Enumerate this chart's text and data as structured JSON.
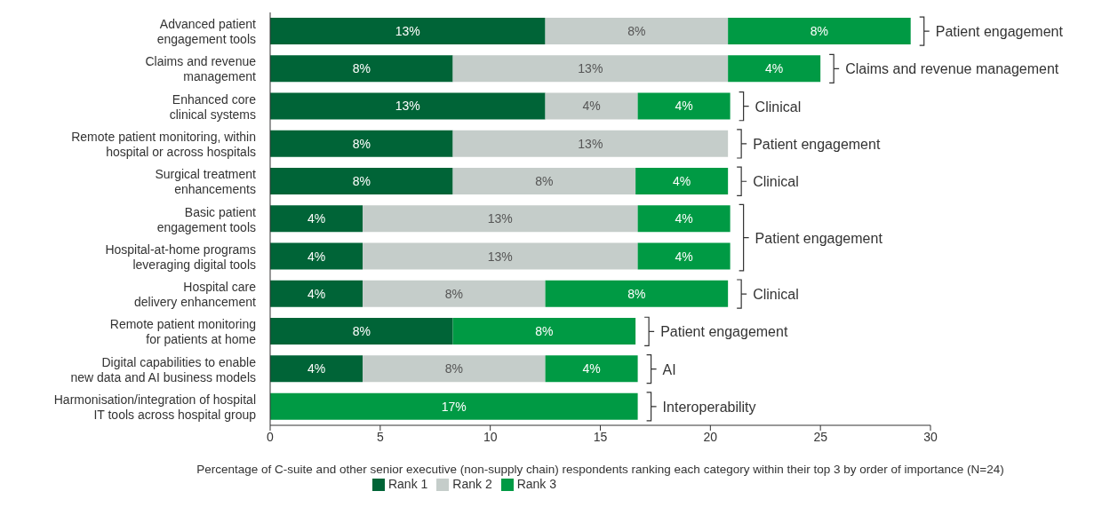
{
  "chart_data": {
    "type": "bar",
    "orientation": "horizontal",
    "stacked": true,
    "categories": [
      "Advanced patient engagement tools",
      "Claims and revenue management",
      "Enhanced core clinical systems",
      "Remote patient monitoring, within hospital or across hospitals",
      "Surgical treatment enhancements",
      "Basic patient engagement tools",
      "Hospital-at-home programs leveraging digital tools",
      "Hospital care delivery enhancement",
      "Remote patient monitoring for patients at home",
      "Digital capabilities to enable new data and AI business models",
      "Harmonisation/integration of hospital IT tools across hospital group"
    ],
    "series": [
      {
        "name": "Rank 1",
        "color": "#006437",
        "values": [
          12.5,
          8.3,
          12.5,
          8.3,
          8.3,
          4.2,
          4.2,
          4.2,
          8.3,
          4.2,
          null
        ],
        "value_labels": [
          "13%",
          "8%",
          "13%",
          "8%",
          "8%",
          "4%",
          "4%",
          "4%",
          "8%",
          "4%",
          null
        ]
      },
      {
        "name": "Rank 2",
        "color": "#c5cdca",
        "values": [
          8.3,
          12.5,
          4.2,
          12.5,
          8.3,
          12.5,
          12.5,
          8.3,
          null,
          8.3,
          null
        ],
        "value_labels": [
          "8%",
          "13%",
          "4%",
          "13%",
          "8%",
          "13%",
          "13%",
          "8%",
          null,
          "8%",
          null
        ]
      },
      {
        "name": "Rank 3",
        "color": "#009a44",
        "values": [
          8.3,
          4.2,
          4.2,
          null,
          4.2,
          4.2,
          4.2,
          8.3,
          8.3,
          4.2,
          16.7
        ],
        "value_labels": [
          "8%",
          "4%",
          "4%",
          null,
          "4%",
          "4%",
          "4%",
          "8%",
          "8%",
          "4%",
          "17%"
        ]
      }
    ],
    "xlim": [
      0,
      30
    ],
    "xticks": [
      0,
      5,
      10,
      15,
      20,
      25,
      30
    ],
    "xlabel": "Percentage of C-suite and other senior executive (non-supply chain) respondents ranking each category within their top 3 by order of importance (N=24)",
    "annotations": [
      {
        "text": "Patient engagement",
        "x": 29.1,
        "y": "Advanced patient engagement tools"
      },
      {
        "text": "Claims and revenue management",
        "x": 25.0,
        "y": "Claims and revenue management"
      },
      {
        "text": "Clinical",
        "x": 20.9,
        "y": "Enhanced core clinical systems"
      },
      {
        "text": "Patient engagement",
        "x": 20.8,
        "y": "Remote patient monitoring, within hospital or across hospitals"
      },
      {
        "text": "Clinical",
        "x": 20.8,
        "y": "Surgical treatment enhancements"
      },
      {
        "text": "Patient engagement",
        "x": 20.9,
        "y": "Basic patient engagement tools"
      },
      {
        "text": "Clinical",
        "x": 20.8,
        "y": "Hospital care delivery enhancement"
      },
      {
        "text": "Patient engagement",
        "x": 16.6,
        "y": "Remote patient monitoring for patients at home"
      },
      {
        "text": "AI",
        "x": 16.7,
        "y": "Digital capabilities to enable new data and AI business models"
      },
      {
        "text": "Interoperability",
        "x": 16.7,
        "y": "Harmonisation/integration of hospital IT tools across hospital group"
      }
    ],
    "legend": "bottom",
    "grid": false
  }
}
